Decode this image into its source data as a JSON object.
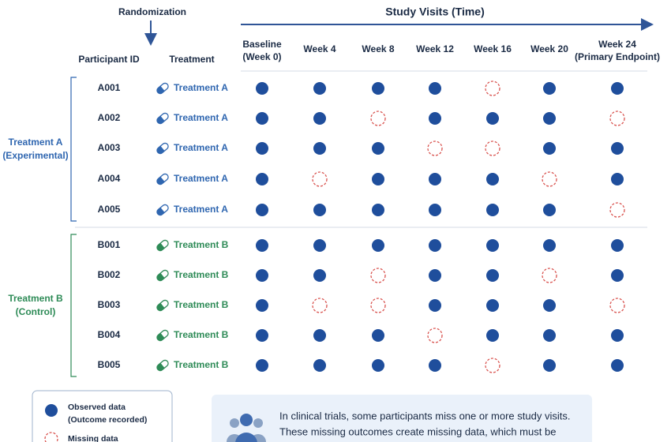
{
  "header": {
    "randomization": "Randomization",
    "study_visits": "Study Visits (Time)",
    "participant_id": "Participant ID",
    "treatment": "Treatment",
    "visits": [
      [
        "Baseline",
        "(Week 0)"
      ],
      [
        "Week 4"
      ],
      [
        "Week 8"
      ],
      [
        "Week 12"
      ],
      [
        "Week 16"
      ],
      [
        "Week 20"
      ],
      [
        "Week 24",
        "(Primary Endpoint)"
      ]
    ]
  },
  "groups": [
    {
      "label": [
        "Treatment A",
        "(Experimental)"
      ],
      "color": "#2f66b0",
      "participants": [
        {
          "id": "A001",
          "treatment": "Treatment A",
          "observed": [
            true,
            true,
            true,
            true,
            false,
            true,
            true
          ]
        },
        {
          "id": "A002",
          "treatment": "Treatment A",
          "observed": [
            true,
            true,
            false,
            true,
            true,
            true,
            false
          ]
        },
        {
          "id": "A003",
          "treatment": "Treatment A",
          "observed": [
            true,
            true,
            true,
            false,
            false,
            true,
            true
          ]
        },
        {
          "id": "A004",
          "treatment": "Treatment A",
          "observed": [
            true,
            false,
            true,
            true,
            true,
            false,
            true
          ]
        },
        {
          "id": "A005",
          "treatment": "Treatment A",
          "observed": [
            true,
            true,
            true,
            true,
            true,
            true,
            false
          ]
        }
      ]
    },
    {
      "label": [
        "Treatment B",
        "(Control)"
      ],
      "color": "#2e8b57",
      "participants": [
        {
          "id": "B001",
          "treatment": "Treatment B",
          "observed": [
            true,
            true,
            true,
            true,
            true,
            true,
            true
          ]
        },
        {
          "id": "B002",
          "treatment": "Treatment B",
          "observed": [
            true,
            true,
            false,
            true,
            true,
            false,
            true
          ]
        },
        {
          "id": "B003",
          "treatment": "Treatment B",
          "observed": [
            true,
            false,
            false,
            true,
            true,
            true,
            false
          ]
        },
        {
          "id": "B004",
          "treatment": "Treatment B",
          "observed": [
            true,
            true,
            true,
            false,
            true,
            true,
            true
          ]
        },
        {
          "id": "B005",
          "treatment": "Treatment B",
          "observed": [
            true,
            true,
            true,
            true,
            false,
            true,
            true
          ]
        }
      ]
    }
  ],
  "legend": {
    "observed": [
      "Observed data",
      "(Outcome recorded)"
    ],
    "missing": [
      "Missing data"
    ]
  },
  "note": {
    "lines": [
      "In clinical trials, some participants miss one or more study visits.",
      "These missing outcomes create missing data, which must be"
    ]
  }
}
